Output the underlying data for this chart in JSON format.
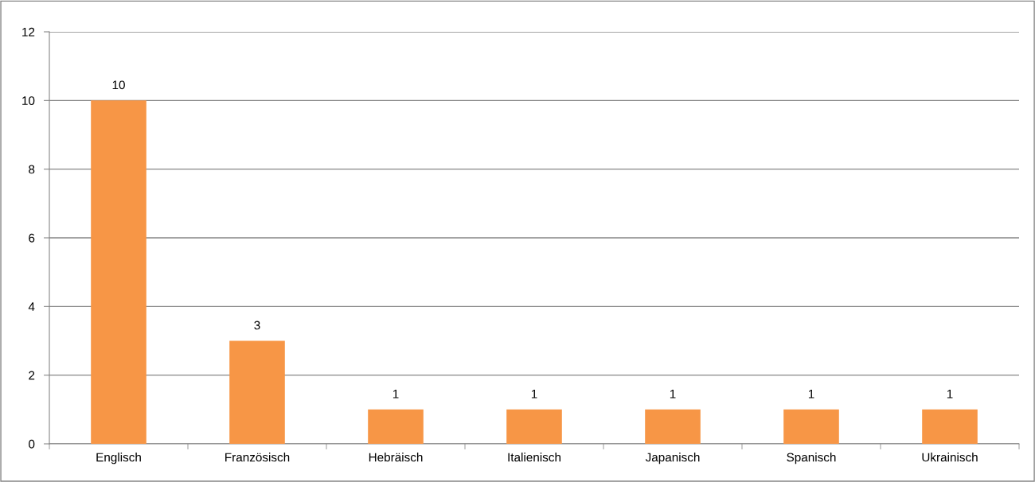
{
  "chart_data": {
    "type": "bar",
    "categories": [
      "Englisch",
      "Französisch",
      "Hebräisch",
      "Italienisch",
      "Japanisch",
      "Spanisch",
      "Ukrainisch"
    ],
    "values": [
      10,
      3,
      1,
      1,
      1,
      1,
      1
    ],
    "color": "#f79646",
    "ylim": [
      0,
      12
    ],
    "yticks": [
      0,
      2,
      4,
      6,
      8,
      10,
      12
    ],
    "grid": "y",
    "data_labels": true,
    "legend": false
  }
}
